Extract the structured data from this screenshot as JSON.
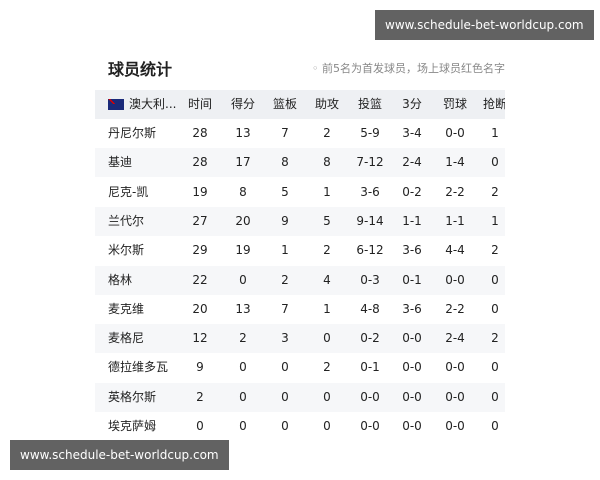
{
  "header": {
    "title": "球员统计",
    "note": "前5名为首发球员，场上球员红色名字"
  },
  "table": {
    "columns": [
      "澳大利...",
      "时间",
      "得分",
      "篮板",
      "助攻",
      "投篮",
      "3分",
      "罚球",
      "抢断"
    ],
    "rows": [
      [
        "丹尼尔斯",
        28,
        13,
        7,
        2,
        "5-9",
        "3-4",
        "0-0",
        1
      ],
      [
        "基迪",
        28,
        17,
        8,
        8,
        "7-12",
        "2-4",
        "1-4",
        0
      ],
      [
        "尼克-凯",
        19,
        8,
        5,
        1,
        "3-6",
        "0-2",
        "2-2",
        2
      ],
      [
        "兰代尔",
        27,
        20,
        9,
        5,
        "9-14",
        "1-1",
        "1-1",
        1
      ],
      [
        "米尔斯",
        29,
        19,
        1,
        2,
        "6-12",
        "3-6",
        "4-4",
        2
      ],
      [
        "格林",
        22,
        0,
        2,
        4,
        "0-3",
        "0-1",
        "0-0",
        0
      ],
      [
        "麦克维",
        20,
        13,
        7,
        1,
        "4-8",
        "3-6",
        "2-2",
        0
      ],
      [
        "麦格尼",
        12,
        2,
        3,
        0,
        "0-2",
        "0-0",
        "2-4",
        2
      ],
      [
        "德拉维多瓦",
        9,
        0,
        0,
        2,
        "0-1",
        "0-0",
        "0-0",
        0
      ],
      [
        "英格尔斯",
        2,
        0,
        0,
        0,
        "0-0",
        "0-0",
        "0-0",
        0
      ],
      [
        "埃克萨姆",
        0,
        0,
        0,
        0,
        "0-0",
        "0-0",
        "0-0",
        0
      ]
    ]
  },
  "watermarks": [
    "www.schedule-bet-worldcup.com",
    "www.schedule-bet-worldcup.com"
  ]
}
